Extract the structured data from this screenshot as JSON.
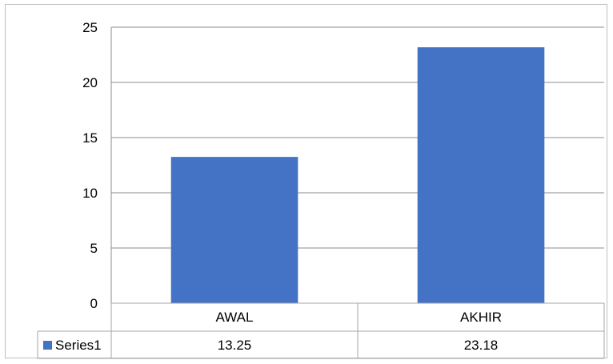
{
  "chart_data": {
    "type": "bar",
    "categories": [
      "AWAL",
      "AKHIR"
    ],
    "series": [
      {
        "name": "Series1",
        "values": [
          13.25,
          23.18
        ],
        "color": "#4472c4"
      }
    ],
    "ylim": [
      0,
      25
    ],
    "yticks": [
      0,
      5,
      10,
      15,
      20,
      25
    ],
    "grid": true,
    "legend": "data-table",
    "data_table": true,
    "title": "",
    "xlabel": "",
    "ylabel": ""
  },
  "data_table_labels": [
    "13.25",
    "23.18"
  ],
  "colors": {
    "gridline": "#8c8c8c",
    "table_border": "#a6a6a6",
    "bar": "#4472c4"
  }
}
